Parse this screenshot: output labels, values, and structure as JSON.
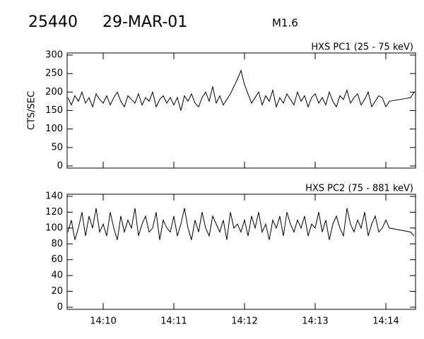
{
  "header": {
    "event": "25440",
    "date": "29-MAR-01",
    "class": "M1.6"
  },
  "chart_data": [
    {
      "type": "line",
      "title": "HXS PC1 (25 - 75 keV)",
      "y_label": "CTS/SEC",
      "color": "#000000",
      "xlim": [
        9.49,
        14.42
      ],
      "ylim": [
        0,
        300
      ],
      "yticks": [
        0,
        50,
        100,
        150,
        200,
        250,
        300
      ],
      "x": [
        9.5,
        9.55,
        9.6,
        9.65,
        9.7,
        9.75,
        9.8,
        9.85,
        9.9,
        9.95,
        10,
        10.05,
        10.1,
        10.15,
        10.2,
        10.25,
        10.3,
        10.35,
        10.4,
        10.45,
        10.5,
        10.55,
        10.6,
        10.65,
        10.7,
        10.75,
        10.8,
        10.85,
        10.9,
        10.95,
        11,
        11.05,
        11.1,
        11.15,
        11.2,
        11.25,
        11.3,
        11.35,
        11.4,
        11.45,
        11.5,
        11.55,
        11.6,
        11.65,
        11.7,
        11.75,
        11.8,
        11.85,
        11.9,
        11.95,
        12,
        12.05,
        12.1,
        12.15,
        12.2,
        12.25,
        12.3,
        12.35,
        12.4,
        12.45,
        12.5,
        12.55,
        12.6,
        12.65,
        12.7,
        12.75,
        12.8,
        12.85,
        12.9,
        12.95,
        13,
        13.05,
        13.1,
        13.15,
        13.2,
        13.25,
        13.3,
        13.35,
        13.4,
        13.45,
        13.5,
        13.55,
        13.6,
        13.65,
        13.7,
        13.75,
        13.8,
        13.85,
        13.9,
        13.95,
        14,
        14.05,
        14.35,
        14.4
      ],
      "values": [
        185,
        165,
        190,
        175,
        200,
        170,
        185,
        160,
        195,
        180,
        170,
        190,
        165,
        185,
        200,
        175,
        160,
        190,
        180,
        170,
        195,
        165,
        185,
        175,
        200,
        160,
        180,
        190,
        170,
        185,
        165,
        185,
        150,
        190,
        175,
        195,
        170,
        160,
        185,
        200,
        175,
        215,
        170,
        190,
        165,
        180,
        195,
        215,
        235,
        258,
        220,
        195,
        170,
        185,
        200,
        165,
        190,
        175,
        205,
        160,
        185,
        170,
        195,
        180,
        165,
        200,
        175,
        190,
        160,
        185,
        195,
        170,
        185,
        165,
        200,
        175,
        160,
        190,
        180,
        205,
        170,
        185,
        195,
        165,
        180,
        200,
        160,
        175,
        190,
        185,
        160,
        175,
        185,
        200
      ]
    },
    {
      "type": "line",
      "title": "HXS PC2 (75 - 881 keV)",
      "color": "#000000",
      "xlim": [
        9.49,
        14.42
      ],
      "ylim": [
        0,
        140
      ],
      "yticks": [
        0,
        20,
        40,
        60,
        80,
        100,
        120,
        140
      ],
      "xticks": [
        {
          "value": 10,
          "label": "14:10"
        },
        {
          "value": 11,
          "label": "14:11"
        },
        {
          "value": 12,
          "label": "14:12"
        },
        {
          "value": 13,
          "label": "14:13"
        },
        {
          "value": 14,
          "label": "14:14"
        }
      ],
      "x": [
        9.5,
        9.55,
        9.6,
        9.65,
        9.7,
        9.75,
        9.8,
        9.85,
        9.9,
        9.95,
        10,
        10.05,
        10.1,
        10.15,
        10.2,
        10.25,
        10.3,
        10.35,
        10.4,
        10.45,
        10.5,
        10.55,
        10.6,
        10.65,
        10.7,
        10.75,
        10.8,
        10.85,
        10.9,
        10.95,
        11,
        11.05,
        11.1,
        11.15,
        11.2,
        11.25,
        11.3,
        11.35,
        11.4,
        11.45,
        11.5,
        11.55,
        11.6,
        11.65,
        11.7,
        11.75,
        11.8,
        11.85,
        11.9,
        11.95,
        12,
        12.05,
        12.1,
        12.15,
        12.2,
        12.25,
        12.3,
        12.35,
        12.4,
        12.45,
        12.5,
        12.55,
        12.6,
        12.65,
        12.7,
        12.75,
        12.8,
        12.85,
        12.9,
        12.95,
        13,
        13.05,
        13.1,
        13.15,
        13.2,
        13.25,
        13.3,
        13.35,
        13.4,
        13.45,
        13.5,
        13.55,
        13.6,
        13.65,
        13.7,
        13.75,
        13.8,
        13.85,
        13.9,
        13.95,
        14,
        14.05,
        14.35,
        14.4
      ],
      "values": [
        95,
        110,
        85,
        100,
        120,
        90,
        115,
        100,
        125,
        95,
        105,
        90,
        120,
        100,
        85,
        115,
        95,
        110,
        100,
        125,
        90,
        105,
        115,
        95,
        100,
        120,
        85,
        110,
        100,
        95,
        115,
        90,
        105,
        125,
        100,
        85,
        110,
        95,
        120,
        100,
        90,
        115,
        105,
        95,
        110,
        85,
        120,
        100,
        105,
        95,
        110,
        90,
        115,
        100,
        120,
        95,
        105,
        85,
        110,
        100,
        115,
        90,
        120,
        105,
        95,
        110,
        100,
        115,
        90,
        105,
        100,
        120,
        95,
        110,
        85,
        105,
        115,
        100,
        90,
        125,
        105,
        95,
        110,
        100,
        120,
        90,
        105,
        115,
        95,
        100,
        110,
        100,
        95,
        90
      ]
    }
  ]
}
